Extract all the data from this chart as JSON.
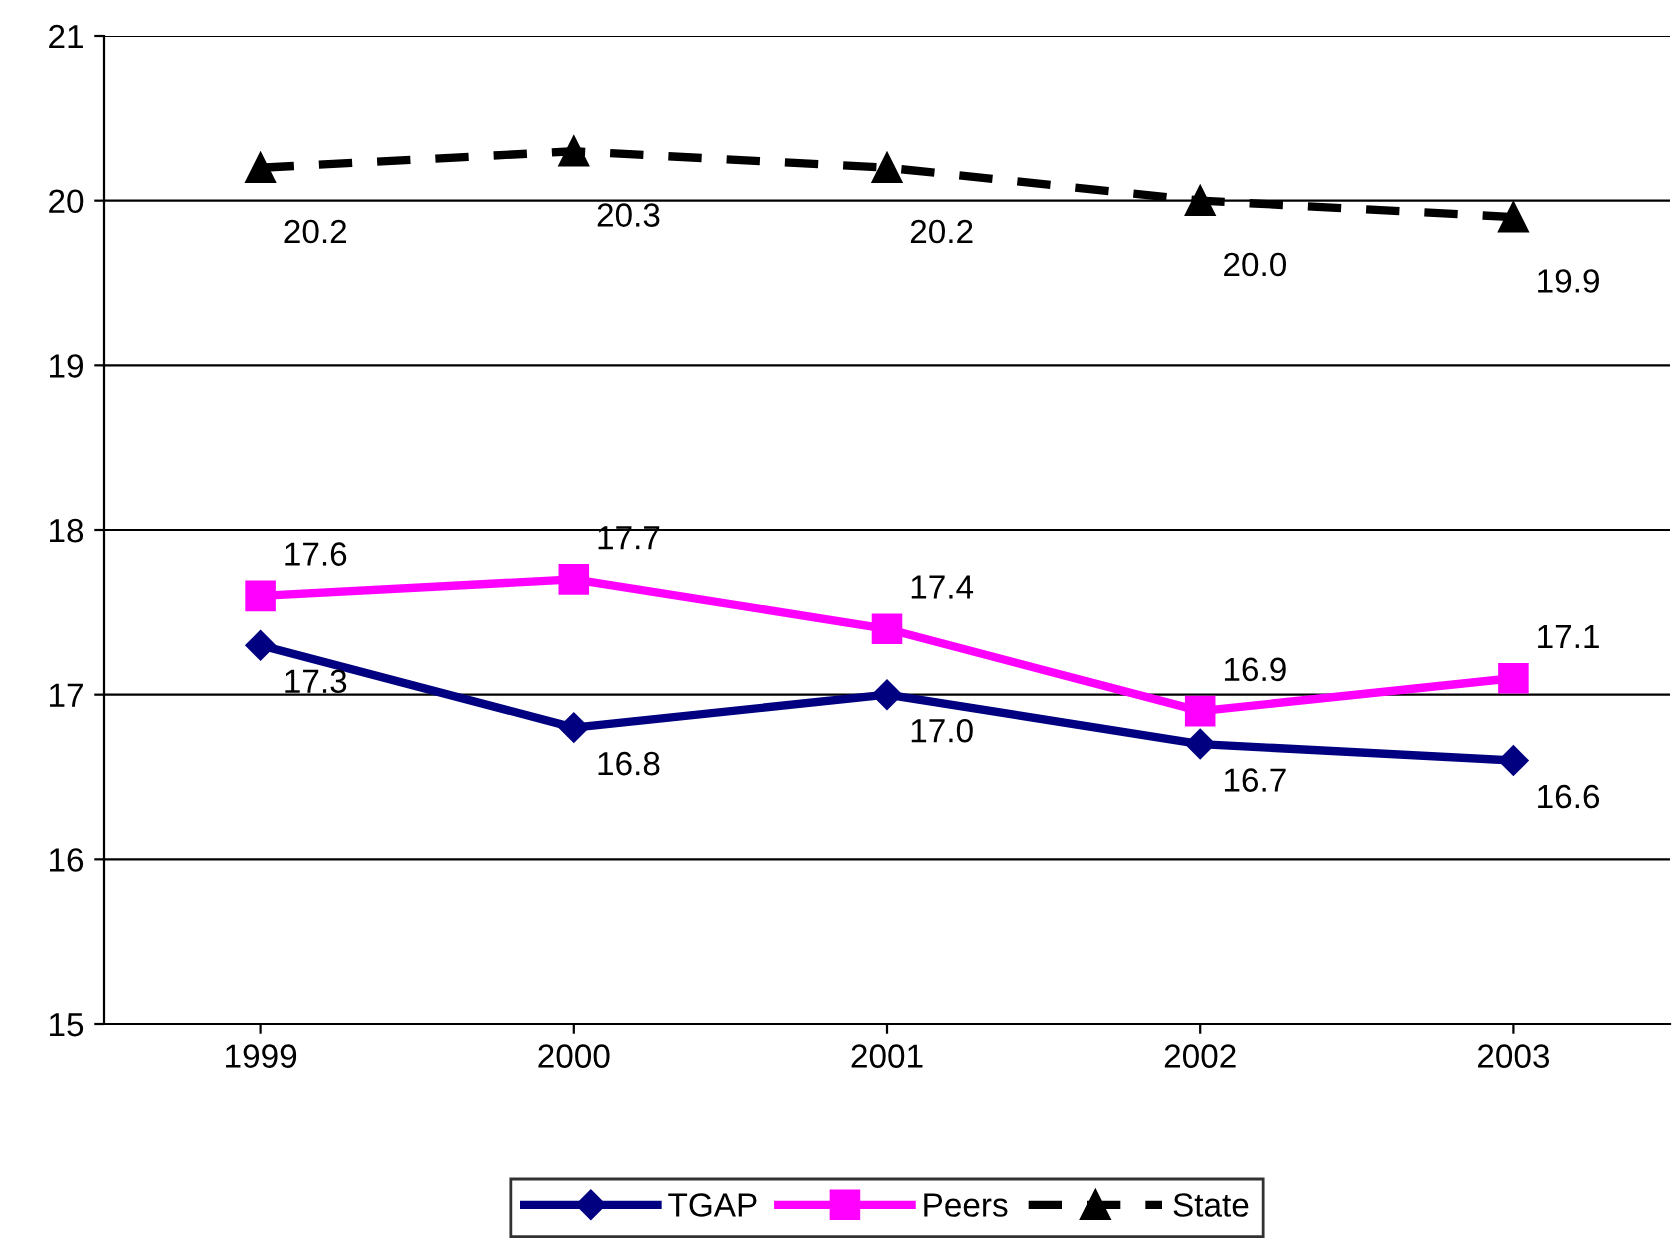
{
  "chart_data": {
    "type": "line",
    "categories": [
      "1999",
      "2000",
      "2001",
      "2002",
      "2003"
    ],
    "ylim": [
      15,
      21
    ],
    "yticks": [
      15,
      16,
      17,
      18,
      19,
      20,
      21
    ],
    "grid": "y",
    "legend": "bottom",
    "series": [
      {
        "name": "TGAP",
        "color": "#000080",
        "values": [
          17.3,
          16.8,
          17.0,
          16.7,
          16.6
        ],
        "value_labels": [
          "17.3",
          "16.8",
          "17.0",
          "16.7",
          "16.6"
        ],
        "marker": "diamond",
        "line_style": "solid"
      },
      {
        "name": "Peers",
        "color": "#ff00ff",
        "values": [
          17.6,
          17.7,
          17.4,
          16.9,
          17.1
        ],
        "value_labels": [
          "17.6",
          "17.7",
          "17.4",
          "16.9",
          "17.1"
        ],
        "marker": "square",
        "line_style": "solid"
      },
      {
        "name": "State",
        "color": "#000000",
        "values": [
          20.2,
          20.3,
          20.2,
          20.0,
          19.9
        ],
        "value_labels": [
          "20.2",
          "20.3",
          "20.2",
          "20.0",
          "19.9"
        ],
        "marker": "triangle",
        "line_style": "dashed"
      }
    ]
  }
}
